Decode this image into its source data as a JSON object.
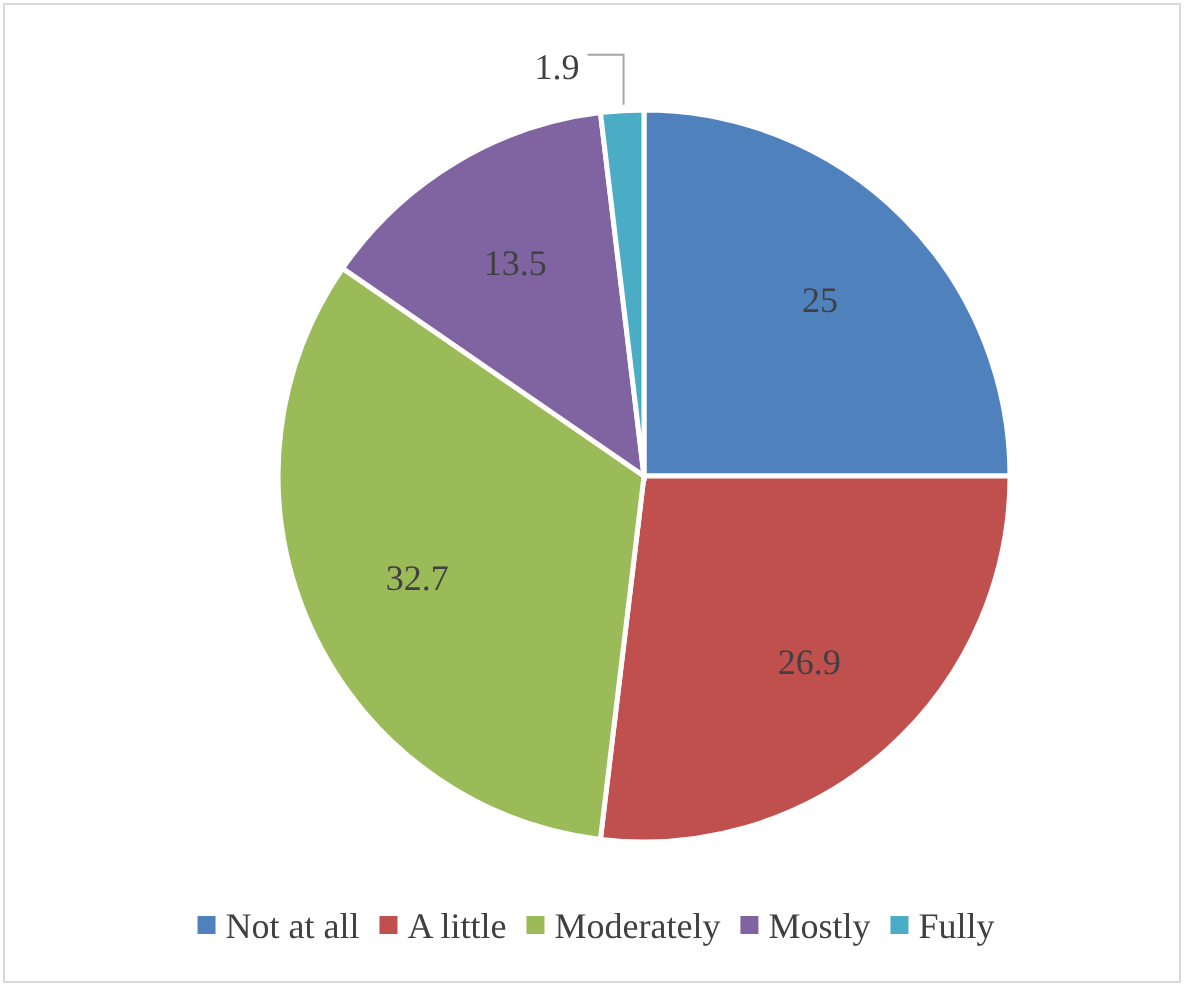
{
  "chart_data": {
    "type": "pie",
    "categories": [
      "Not at all",
      "A little",
      "Moderately",
      "Mostly",
      "Fully"
    ],
    "values": [
      25,
      26.9,
      32.7,
      13.5,
      1.9
    ],
    "colors": [
      "#4f81bd",
      "#c0504d",
      "#9bbb59",
      "#8064a2",
      "#4bacc6"
    ],
    "data_labels": true,
    "legend": "bottom"
  }
}
